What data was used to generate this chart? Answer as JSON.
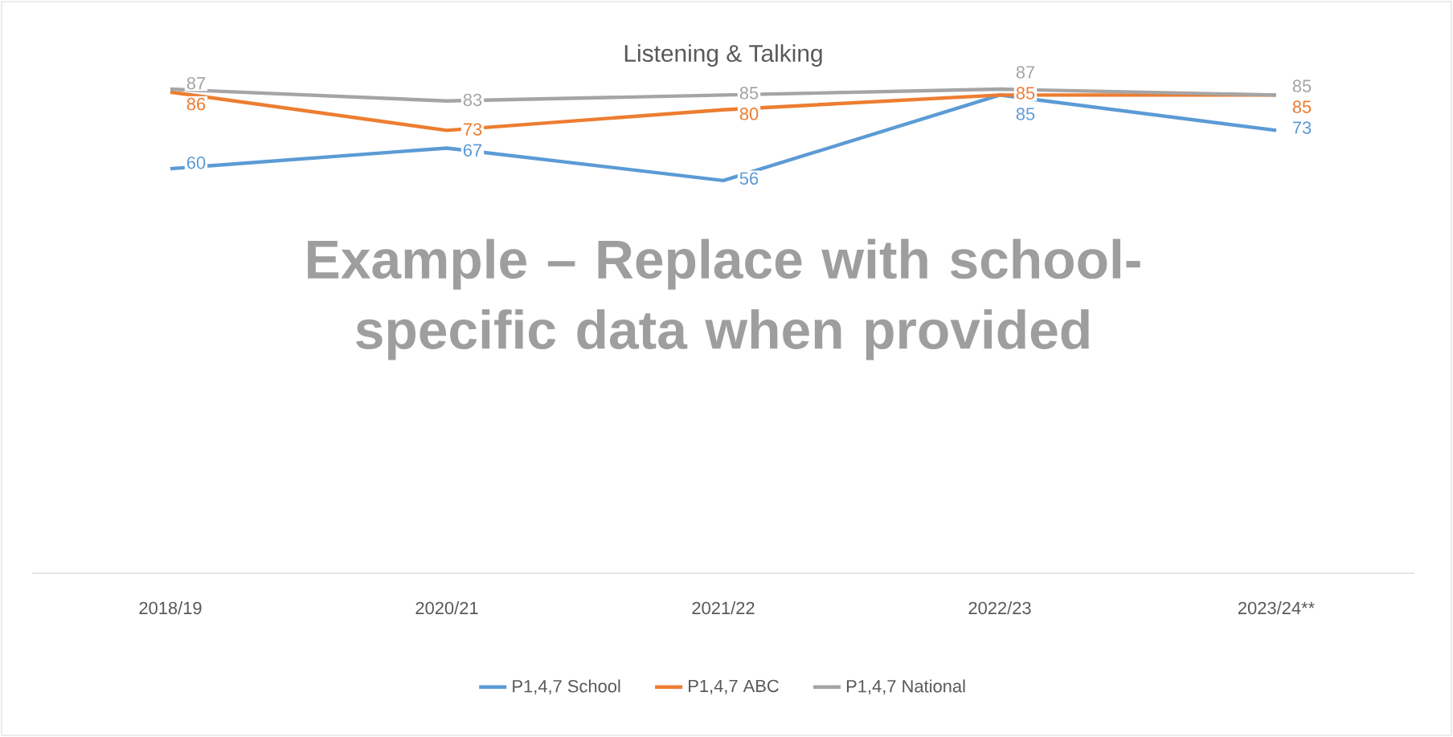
{
  "chart_data": {
    "type": "line",
    "title": "Listening & Talking",
    "categories": [
      "2018/19",
      "2020/21",
      "2021/22",
      "2022/23",
      "2023/24**"
    ],
    "series": [
      {
        "name": "P1,4,7 School",
        "color": "#5b9bd5",
        "values": [
          60,
          67,
          56,
          85,
          73
        ]
      },
      {
        "name": "P1,4,7 ABC",
        "color": "#ed7d31",
        "values": [
          86,
          73,
          80,
          85,
          85
        ]
      },
      {
        "name": "P1,4,7 National",
        "color": "#a5a5a5",
        "values": [
          87,
          83,
          85,
          87,
          85
        ]
      }
    ],
    "data_labels": true,
    "legend": "bottom",
    "line_style": "solid",
    "grid": false,
    "annotations": [
      "Example – Replace with school-specific data when provided"
    ]
  }
}
